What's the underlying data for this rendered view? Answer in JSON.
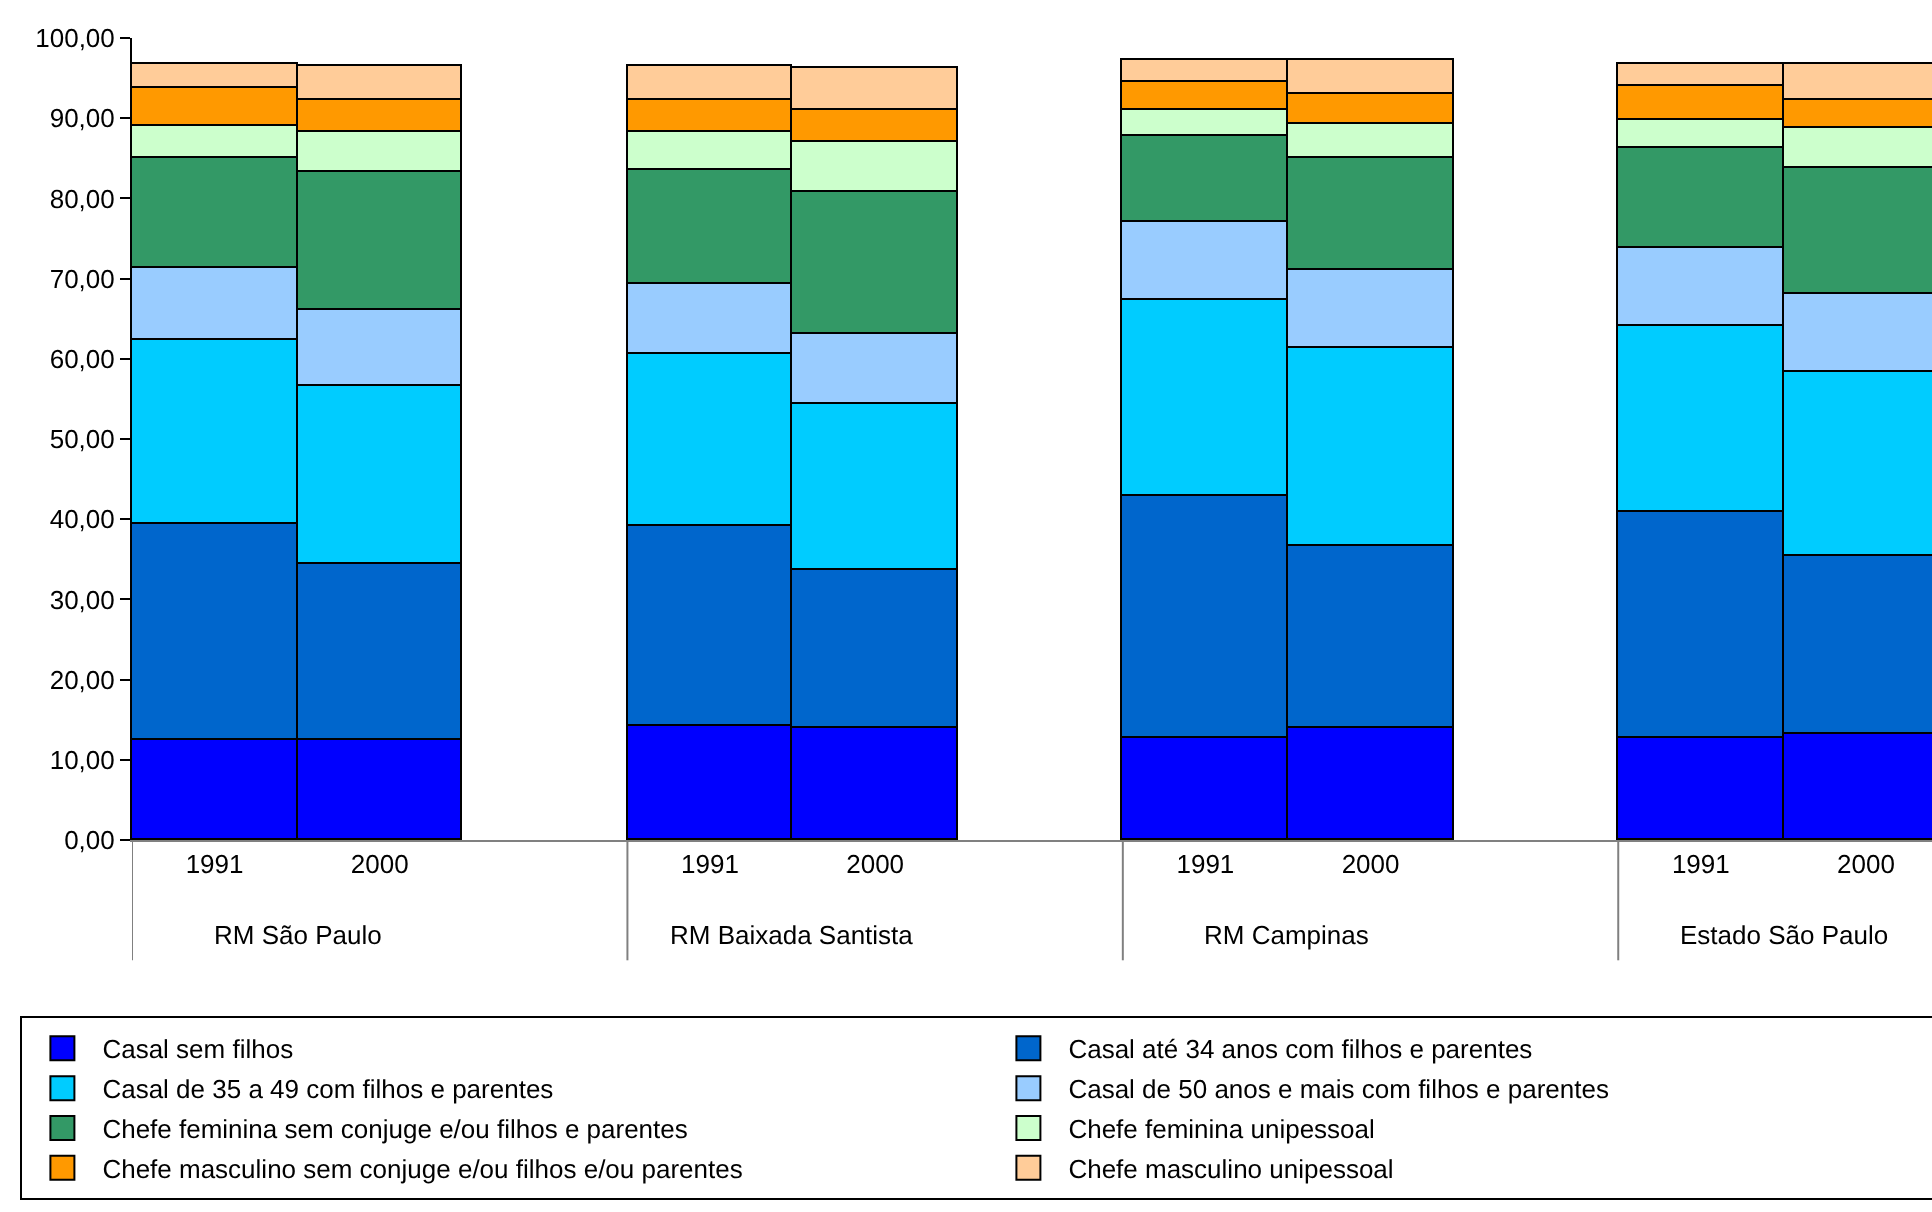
{
  "chart_data": {
    "type": "bar",
    "stacked": true,
    "categories": [
      "1991",
      "2000",
      "1991",
      "2000",
      "1991",
      "2000",
      "1991",
      "2000"
    ],
    "annotations": [
      "RM São Paulo",
      "RM Baixada Santista",
      "RM Campinas",
      "Estado São Paulo"
    ],
    "ylim": [
      0,
      100
    ],
    "yticks": [
      {
        "value": 0,
        "label": "0,00"
      },
      {
        "value": 10,
        "label": "10,00"
      },
      {
        "value": 20,
        "label": "20,00"
      },
      {
        "value": 30,
        "label": "30,00"
      },
      {
        "value": 40,
        "label": "40,00"
      },
      {
        "value": 50,
        "label": "50,00"
      },
      {
        "value": 60,
        "label": "60,00"
      },
      {
        "value": 70,
        "label": "70,00"
      },
      {
        "value": 80,
        "label": "80,00"
      },
      {
        "value": 90,
        "label": "90,00"
      },
      {
        "value": 100,
        "label": "100,00"
      }
    ],
    "legend": "bottom",
    "series": [
      {
        "name": "Casal sem filhos",
        "color": "#0000ff",
        "values": [
          12.4,
          12.5,
          14.3,
          14.0,
          12.7,
          14.0,
          12.7,
          13.3
        ]
      },
      {
        "name": "Casal até 34 anos com filhos e parentes",
        "color": "#0066cc",
        "values": [
          27.0,
          21.9,
          24.8,
          19.7,
          30.1,
          22.7,
          28.2,
          22.2
        ]
      },
      {
        "name": "Casal de 35 a 49 com filhos e parentes",
        "color": "#00ccff",
        "values": [
          23.0,
          22.3,
          21.6,
          20.7,
          24.5,
          24.6,
          23.3,
          22.9
        ]
      },
      {
        "name": "Casal de 50 anos e mais com filhos e parentes",
        "color": "#99ccff",
        "values": [
          8.9,
          9.3,
          8.6,
          8.7,
          9.8,
          9.8,
          9.5,
          9.8
        ]
      },
      {
        "name": "Chefe feminina sem conjuge e/ou filhos e parentes",
        "color": "#339966",
        "values": [
          13.7,
          17.2,
          14.3,
          17.8,
          10.7,
          13.9,
          12.6,
          15.5
        ]
      },
      {
        "name": "Chefe feminina unipessoal",
        "color": "#ccffcc",
        "values": [
          4.1,
          5.1,
          4.7,
          6.1,
          3.1,
          4.4,
          3.5,
          5.0
        ]
      },
      {
        "name": "Chefe masculino sem conjuge e/ou filhos e/ou parentes",
        "color": "#ff9900",
        "values": [
          4.7,
          4.0,
          4.0,
          4.0,
          3.7,
          3.6,
          4.2,
          3.6
        ]
      },
      {
        "name": "Chefe masculino unipessoal",
        "color": "#ffcc99",
        "values": [
          2.9,
          4.2,
          4.1,
          5.3,
          2.7,
          4.2,
          2.8,
          4.4
        ]
      }
    ]
  }
}
